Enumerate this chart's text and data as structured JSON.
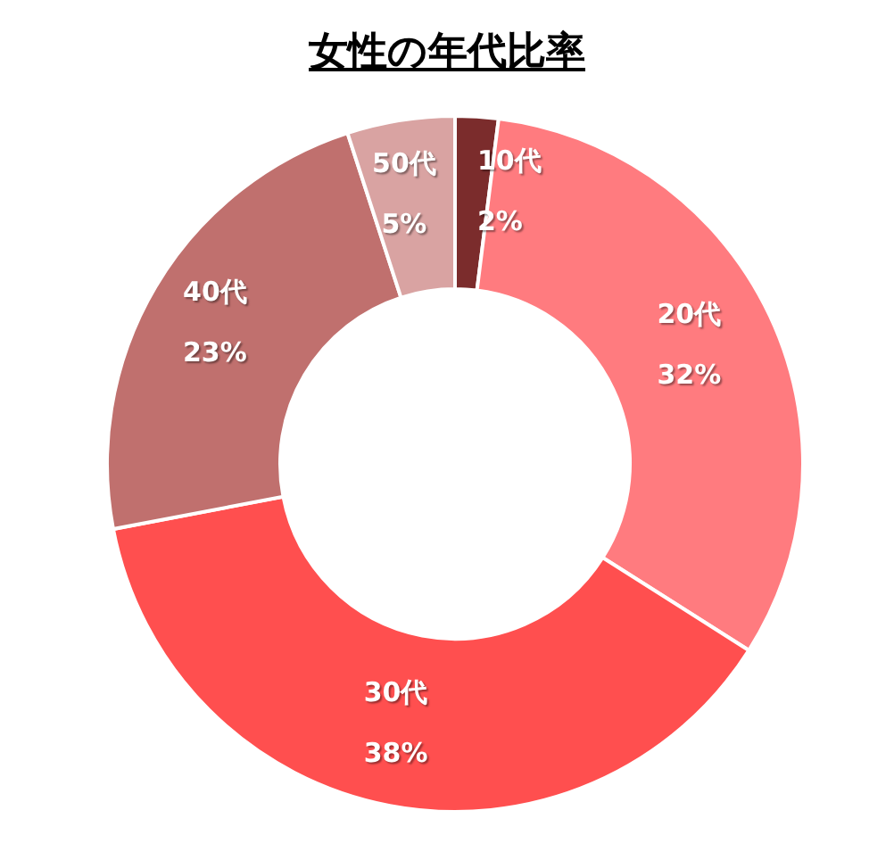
{
  "chart_data": {
    "type": "donut",
    "title": "女性の年代比率",
    "categories": [
      "10代",
      "20代",
      "30代",
      "40代",
      "50代"
    ],
    "values": [
      2,
      32,
      38,
      23,
      5
    ],
    "value_labels": [
      "2%",
      "32%",
      "38%",
      "23%",
      "5%"
    ],
    "colors": [
      "#7b2c2c",
      "#ff7b7f",
      "#ff4f4f",
      "#c0706e",
      "#d9a3a2"
    ],
    "legend": false
  }
}
